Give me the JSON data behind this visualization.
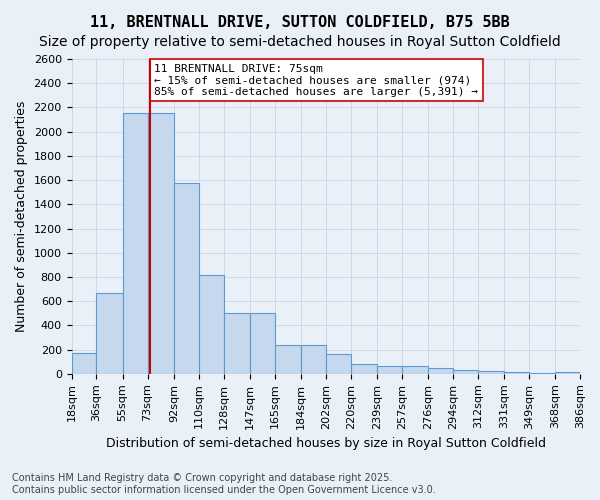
{
  "title1": "11, BRENTNALL DRIVE, SUTTON COLDFIELD, B75 5BB",
  "title2": "Size of property relative to semi-detached houses in Royal Sutton Coldfield",
  "xlabel": "Distribution of semi-detached houses by size in Royal Sutton Coldfield",
  "ylabel": "Number of semi-detached properties",
  "footnote": "Contains HM Land Registry data © Crown copyright and database right 2025.\nContains public sector information licensed under the Open Government Licence v3.0.",
  "annotation_title": "11 BRENTNALL DRIVE: 75sqm",
  "annotation_line1": "← 15% of semi-detached houses are smaller (974)",
  "annotation_line2": "85% of semi-detached houses are larger (5,391) →",
  "property_sqm": 75,
  "bar_edges": [
    18,
    36,
    55,
    73,
    92,
    110,
    128,
    147,
    165,
    184,
    202,
    220,
    239,
    257,
    276,
    294,
    312,
    331,
    349,
    368,
    386
  ],
  "bar_heights": [
    175,
    670,
    2150,
    2150,
    1575,
    820,
    500,
    500,
    240,
    240,
    160,
    80,
    65,
    65,
    50,
    30,
    20,
    15,
    10,
    15
  ],
  "bar_color": "#c5d8ed",
  "bar_edge_color": "#5b9bd5",
  "vline_color": "#cc0000",
  "vline_x": 75,
  "annotation_box_color": "#cc0000",
  "annotation_box_fill": "#ffffff",
  "ylim": [
    0,
    2600
  ],
  "yticks": [
    0,
    200,
    400,
    600,
    800,
    1000,
    1200,
    1400,
    1600,
    1800,
    2000,
    2200,
    2400,
    2600
  ],
  "grid_color": "#d0d8e8",
  "background_color": "#eaf0f8",
  "title1_fontsize": 11,
  "title2_fontsize": 10,
  "xlabel_fontsize": 9,
  "ylabel_fontsize": 9,
  "tick_fontsize": 8,
  "annotation_fontsize": 8,
  "footnote_fontsize": 7
}
